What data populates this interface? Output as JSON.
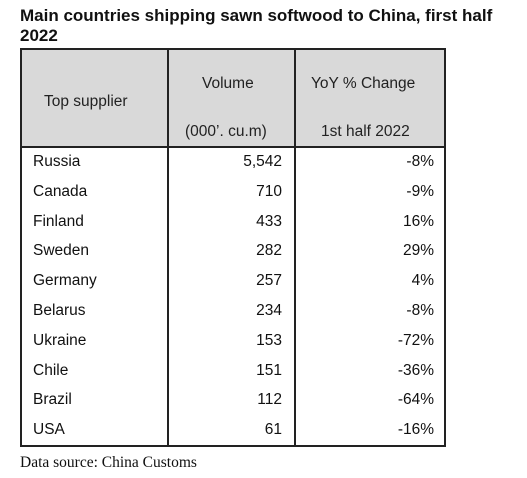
{
  "title": "Main countries shipping sawn softwood to China, first half 2022",
  "table": {
    "headers": {
      "supplier": "Top supplier",
      "volume": "Volume",
      "volume_unit": "(000’. cu.m)",
      "change": "YoY % Change",
      "change_period": "1st half 2022"
    },
    "rows": [
      {
        "country": "Russia",
        "volume": "5,542",
        "change": "-8%"
      },
      {
        "country": "Canada",
        "volume": "710",
        "change": "-9%"
      },
      {
        "country": "Finland",
        "volume": "433",
        "change": "16%"
      },
      {
        "country": "Sweden",
        "volume": "282",
        "change": "29%"
      },
      {
        "country": "Germany",
        "volume": "257",
        "change": "4%"
      },
      {
        "country": "Belarus",
        "volume": "234",
        "change": "-8%"
      },
      {
        "country": "Ukraine",
        "volume": "153",
        "change": "-72%"
      },
      {
        "country": "Chile",
        "volume": "151",
        "change": "-36%"
      },
      {
        "country": "Brazil",
        "volume": "112",
        "change": "-64%"
      },
      {
        "country": "USA",
        "volume": "61",
        "change": "-16%"
      }
    ]
  },
  "source": "Data source: China Customs",
  "colors": {
    "header_background": "#d9d9d9",
    "border": "#222222",
    "text": "#111111"
  }
}
